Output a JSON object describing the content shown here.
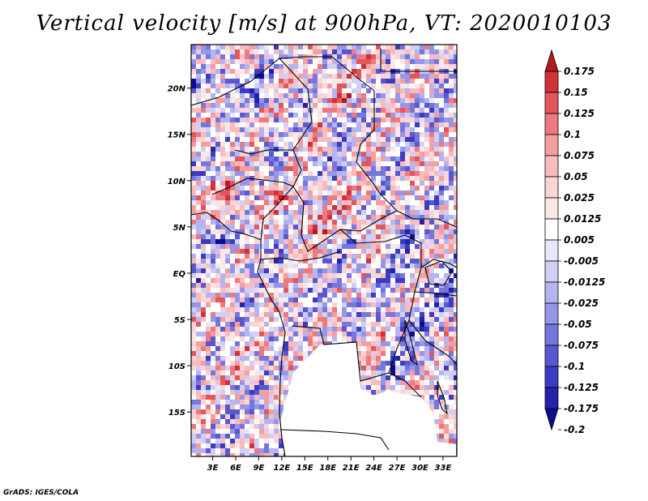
{
  "chart_data": {
    "type": "heatmap",
    "title": "Vertical velocity [m/s] at 900hPa, VT: 2020010103",
    "x_ticks": [
      "3E",
      "6E",
      "9E",
      "12E",
      "15E",
      "18E",
      "21E",
      "24E",
      "27E",
      "30E",
      "33E"
    ],
    "x_tick_values": [
      3,
      6,
      9,
      12,
      15,
      18,
      21,
      24,
      27,
      30,
      33
    ],
    "y_ticks": [
      "20N",
      "15N",
      "10N",
      "5N",
      "EQ",
      "5S",
      "10S",
      "15S"
    ],
    "y_tick_values": [
      20,
      15,
      10,
      5,
      0,
      -5,
      -10,
      -15
    ],
    "xlim": [
      0.2,
      34.8
    ],
    "ylim": [
      -19.8,
      24.7
    ],
    "colorbar": {
      "labels": [
        "0.175",
        "0.15",
        "0.125",
        "0.1",
        "0.075",
        "0.05",
        "0.025",
        "0.0125",
        "0.005",
        "-0.005",
        "-0.0125",
        "-0.025",
        "-0.05",
        "-0.075",
        "-0.1",
        "-0.125",
        "-0.175",
        "-0.2"
      ],
      "colors": [
        "#b8191c",
        "#d0323a",
        "#e3575c",
        "#ec7a7e",
        "#f49ea0",
        "#f8bcbe",
        "#fbd4d5",
        "#fde6e6",
        "#ffffff",
        "#e8e8fb",
        "#d0d0f6",
        "#b4b4f0",
        "#9696e8",
        "#7676dc",
        "#5858d0",
        "#3c3cc0",
        "#2222aa",
        "#0c0c8c"
      ]
    },
    "missing_region": "Angola / Zambia interior (white, no data)"
  },
  "footer": "GrADS: IGES/COLA"
}
